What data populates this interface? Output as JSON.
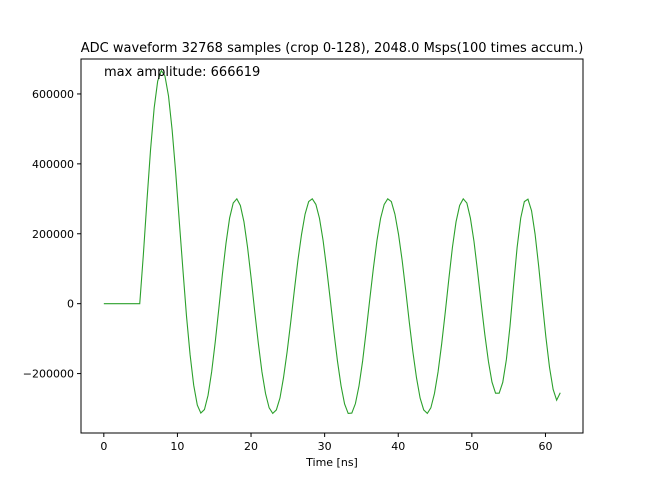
{
  "chart_data": {
    "type": "line",
    "title": "ADC waveform 32768 samples (crop 0-128), 2048.0 Msps(100 times accum.)",
    "xlabel": "Time [ns]",
    "ylabel": "",
    "annotation": "max amplitude: 666619",
    "xlim": [
      -3.1,
      65.1
    ],
    "ylim": [
      -370000,
      700000
    ],
    "xticks": [
      0,
      10,
      20,
      30,
      40,
      50,
      60
    ],
    "yticks": [
      -200000,
      0,
      200000,
      400000,
      600000
    ],
    "xtick_labels": [
      "0",
      "10",
      "20",
      "30",
      "40",
      "50",
      "60"
    ],
    "ytick_labels": [
      "−200000",
      "0",
      "200000",
      "400000",
      "600000"
    ],
    "grid": false,
    "legend": "none",
    "colors": {
      "series": "#2ca02c"
    },
    "series": [
      {
        "x": [
          0,
          0.49,
          0.98,
          1.46,
          1.95,
          2.44,
          2.93,
          3.42,
          3.91,
          4.39,
          4.88,
          5.37,
          5.86,
          6.35,
          6.84,
          7.32,
          7.81,
          8.3,
          8.79,
          9.28,
          9.77,
          10.25,
          10.74,
          11.23,
          11.72,
          12.21,
          12.7,
          13.18,
          13.67,
          14.16,
          14.65,
          15.14,
          15.63,
          16.11,
          16.6,
          17.09,
          17.58,
          18.07,
          18.55,
          19.04,
          19.53,
          20.02,
          20.51,
          21.0,
          21.48,
          21.97,
          22.46,
          22.95,
          23.44,
          23.93,
          24.41,
          24.9,
          25.39,
          25.88,
          26.37,
          26.86,
          27.34,
          27.83,
          28.32,
          28.81,
          29.3,
          29.79,
          30.27,
          30.76,
          31.25,
          31.74,
          32.23,
          32.71,
          33.2,
          33.69,
          34.18,
          34.67,
          35.16,
          35.64,
          36.13,
          36.62,
          37.11,
          37.6,
          38.09,
          38.57,
          39.06,
          39.55,
          40.04,
          40.53,
          41.02,
          41.5,
          41.99,
          42.48,
          42.97,
          43.46,
          43.95,
          44.43,
          44.92,
          45.41,
          45.9,
          46.39,
          46.88,
          47.36,
          47.85,
          48.34,
          48.83,
          49.32,
          49.8,
          50.29,
          50.78,
          51.27,
          51.76,
          52.25,
          52.73,
          53.22,
          53.71,
          54.2,
          54.69,
          55.18,
          55.66,
          56.15,
          56.64,
          57.13,
          57.62,
          58.11,
          58.59,
          59.08,
          59.57,
          60.06,
          60.55,
          61.04,
          61.52,
          62.01
        ],
        "y": [
          0,
          0,
          0,
          0,
          0,
          0,
          0,
          0,
          0,
          0,
          0,
          140000,
          295000,
          441000,
          560000,
          637000,
          667000,
          652000,
          594000,
          497000,
          374000,
          236000,
          99000,
          -35000,
          -146000,
          -233000,
          -290000,
          -313000,
          -303000,
          -262000,
          -195000,
          -109000,
          -13000,
          84000,
          173000,
          245000,
          288000,
          300000,
          281000,
          234000,
          161000,
          72000,
          -24000,
          -115000,
          -195000,
          -257000,
          -298000,
          -314000,
          -304000,
          -270000,
          -212000,
          -138000,
          -53000,
          37000,
          124000,
          198000,
          256000,
          292000,
          300000,
          284000,
          244000,
          181000,
          101000,
          12000,
          -79000,
          -164000,
          -235000,
          -287000,
          -314000,
          -313000,
          -286000,
          -235000,
          -164000,
          -79000,
          12000,
          101000,
          181000,
          244000,
          284000,
          300000,
          292000,
          256000,
          198000,
          124000,
          37000,
          -53000,
          -138000,
          -212000,
          -270000,
          -304000,
          -314000,
          -298000,
          -257000,
          -195000,
          -115000,
          -24000,
          72000,
          161000,
          234000,
          281000,
          300000,
          288000,
          245000,
          178000,
          92000,
          0,
          -88000,
          -165000,
          -224000,
          -256000,
          -256000,
          -225000,
          -160000,
          -65000,
          50000,
          161000,
          245000,
          292000,
          299000,
          266000,
          199000,
          107000,
          4000,
          -96000,
          -182000,
          -245000,
          -276000,
          -255000
        ]
      }
    ]
  }
}
